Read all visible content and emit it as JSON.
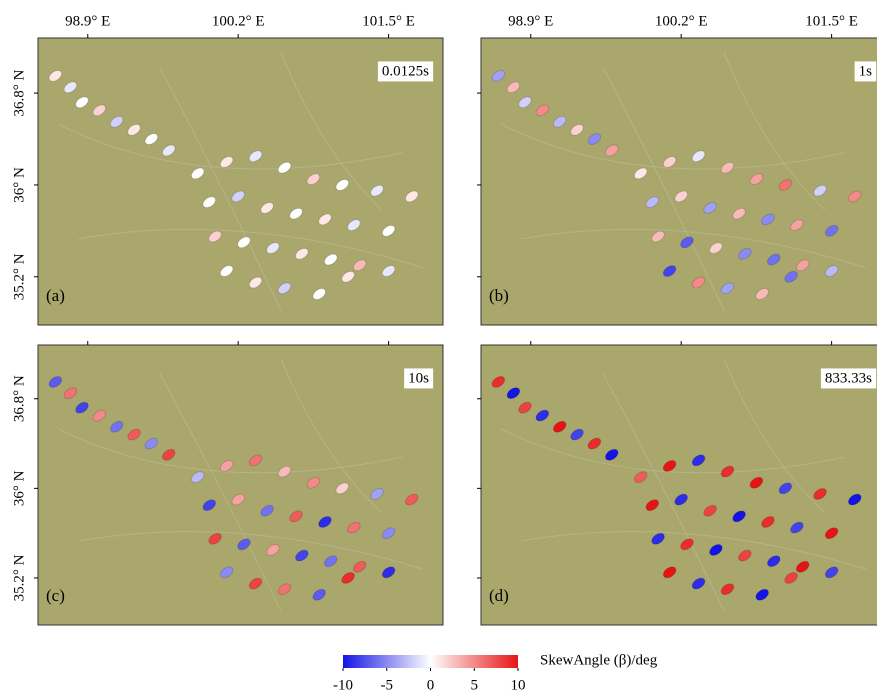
{
  "chart_data": {
    "type": "scatter-map",
    "xlim": [
      98.47,
      101.97
    ],
    "ylim": [
      34.78,
      37.28
    ],
    "xticks": [
      {
        "value": 98.9,
        "label": "98.9° E"
      },
      {
        "value": 100.2,
        "label": "100.2° E"
      },
      {
        "value": 101.5,
        "label": "101.5° E"
      }
    ],
    "yticks": [
      {
        "value": 36.8,
        "label": "36.8° N"
      },
      {
        "value": 36,
        "label": "36° N"
      },
      {
        "value": 35.2,
        "label": "35.2° N"
      }
    ],
    "lon": [
      98.62,
      98.75,
      98.85,
      99.0,
      99.15,
      99.3,
      99.45,
      99.6,
      99.85,
      100.1,
      100.35,
      100.6,
      100.85,
      101.1,
      101.4,
      101.7,
      99.95,
      100.2,
      100.45,
      100.7,
      100.95,
      101.2,
      101.5,
      100.0,
      100.25,
      100.5,
      100.75,
      101.0,
      101.25,
      101.5,
      100.1,
      100.35,
      100.6,
      100.9,
      101.15
    ],
    "lat": [
      36.95,
      36.85,
      36.72,
      36.65,
      36.55,
      36.48,
      36.4,
      36.3,
      36.1,
      36.2,
      36.25,
      36.15,
      36.05,
      36.0,
      35.95,
      35.9,
      35.85,
      35.9,
      35.8,
      35.75,
      35.7,
      35.65,
      35.6,
      35.55,
      35.5,
      35.45,
      35.4,
      35.35,
      35.3,
      35.25,
      35.25,
      35.15,
      35.1,
      35.05,
      35.2
    ],
    "panels": [
      {
        "label": "(a)",
        "period": "0.0125s",
        "values": [
          1,
          -1,
          0,
          2,
          -2,
          1,
          0,
          -1,
          0,
          1,
          -1,
          0,
          2,
          0,
          -1,
          1,
          0,
          -2,
          1,
          0,
          1,
          -1,
          0,
          2,
          0,
          -1,
          1,
          0,
          3,
          -1,
          0,
          1,
          -2,
          0,
          1
        ]
      },
      {
        "label": "(b)",
        "period": "1s",
        "values": [
          -4,
          3,
          -2,
          5,
          -3,
          2,
          -5,
          4,
          1,
          2,
          -1,
          3,
          4,
          6,
          -2,
          5,
          -3,
          2,
          -4,
          3,
          -5,
          4,
          -6,
          3,
          -7,
          2,
          -5,
          -6,
          4,
          -3,
          -8,
          5,
          -4,
          3,
          -6
        ]
      },
      {
        "label": "(c)",
        "period": "10s",
        "values": [
          -7,
          6,
          -8,
          5,
          -6,
          7,
          -5,
          8,
          -3,
          4,
          6,
          3,
          5,
          2,
          -4,
          7,
          -8,
          4,
          -6,
          7,
          -9,
          6,
          -5,
          8,
          -7,
          4,
          -8,
          -6,
          7,
          -9,
          -5,
          8,
          6,
          -7,
          9
        ]
      },
      {
        "label": "(d)",
        "period": "833.33s",
        "values": [
          9,
          -10,
          8,
          -9,
          10,
          -8,
          9,
          -10,
          7,
          10,
          -9,
          9,
          10,
          -8,
          9,
          -10,
          10,
          -9,
          8,
          -10,
          9,
          -8,
          10,
          -9,
          9,
          -10,
          8,
          -9,
          10,
          -8,
          10,
          -9,
          9,
          -10,
          8
        ]
      }
    ],
    "colorbar": {
      "label": "SkewAngle (β)/deg",
      "lim": [
        -10,
        10
      ],
      "ticks": [
        -10,
        -5,
        0,
        5,
        10
      ],
      "colors": [
        "#1414e6",
        "#ffffff",
        "#e61414"
      ]
    }
  }
}
